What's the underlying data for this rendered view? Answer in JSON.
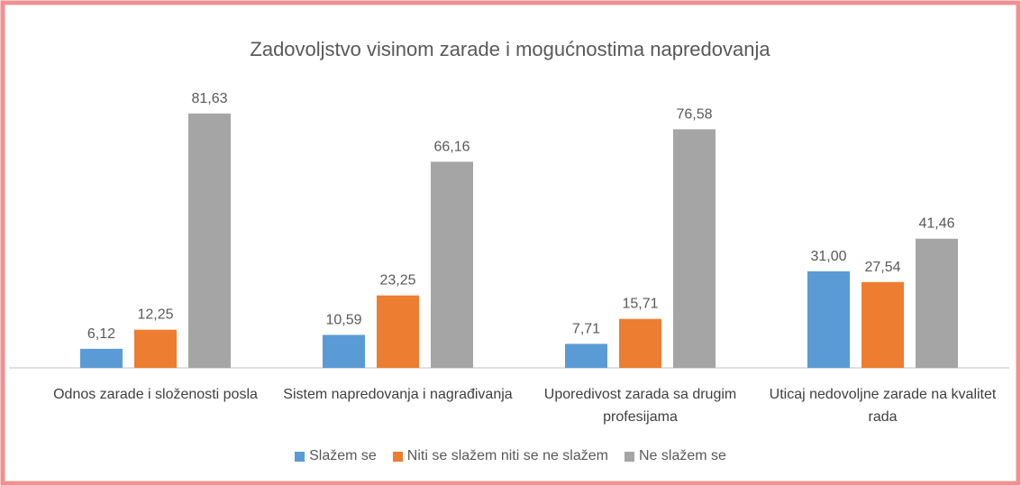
{
  "chart_data": {
    "type": "bar",
    "title": "Zadovoljstvo visinom zarade i mogućnostima napredovanja",
    "categories": [
      "Odnos zarade i složenosti posla",
      "Sistem napredovanja i nagrađivanja",
      "Uporedivost zarada sa drugim profesijama",
      "Uticaj nedovoljne zarade na kvalitet rada"
    ],
    "series": [
      {
        "name": "Slažem se",
        "color": "#5b9bd5",
        "values": [
          6.12,
          10.59,
          7.71,
          31.0
        ],
        "value_labels": [
          "6,12",
          "10,59",
          "7,71",
          "31,00"
        ]
      },
      {
        "name": "Niti se slažem niti se ne slažem",
        "color": "#ed7d31",
        "values": [
          12.25,
          23.25,
          15.71,
          27.54
        ],
        "value_labels": [
          "12,25",
          "23,25",
          "15,71",
          "27,54"
        ]
      },
      {
        "name": "Ne slažem se",
        "color": "#a5a5a5",
        "values": [
          81.63,
          66.16,
          76.58,
          41.46
        ],
        "value_labels": [
          "81,63",
          "66,16",
          "76,58",
          "41,46"
        ]
      }
    ],
    "ylim": [
      0,
      90
    ],
    "legend": "bottom"
  }
}
